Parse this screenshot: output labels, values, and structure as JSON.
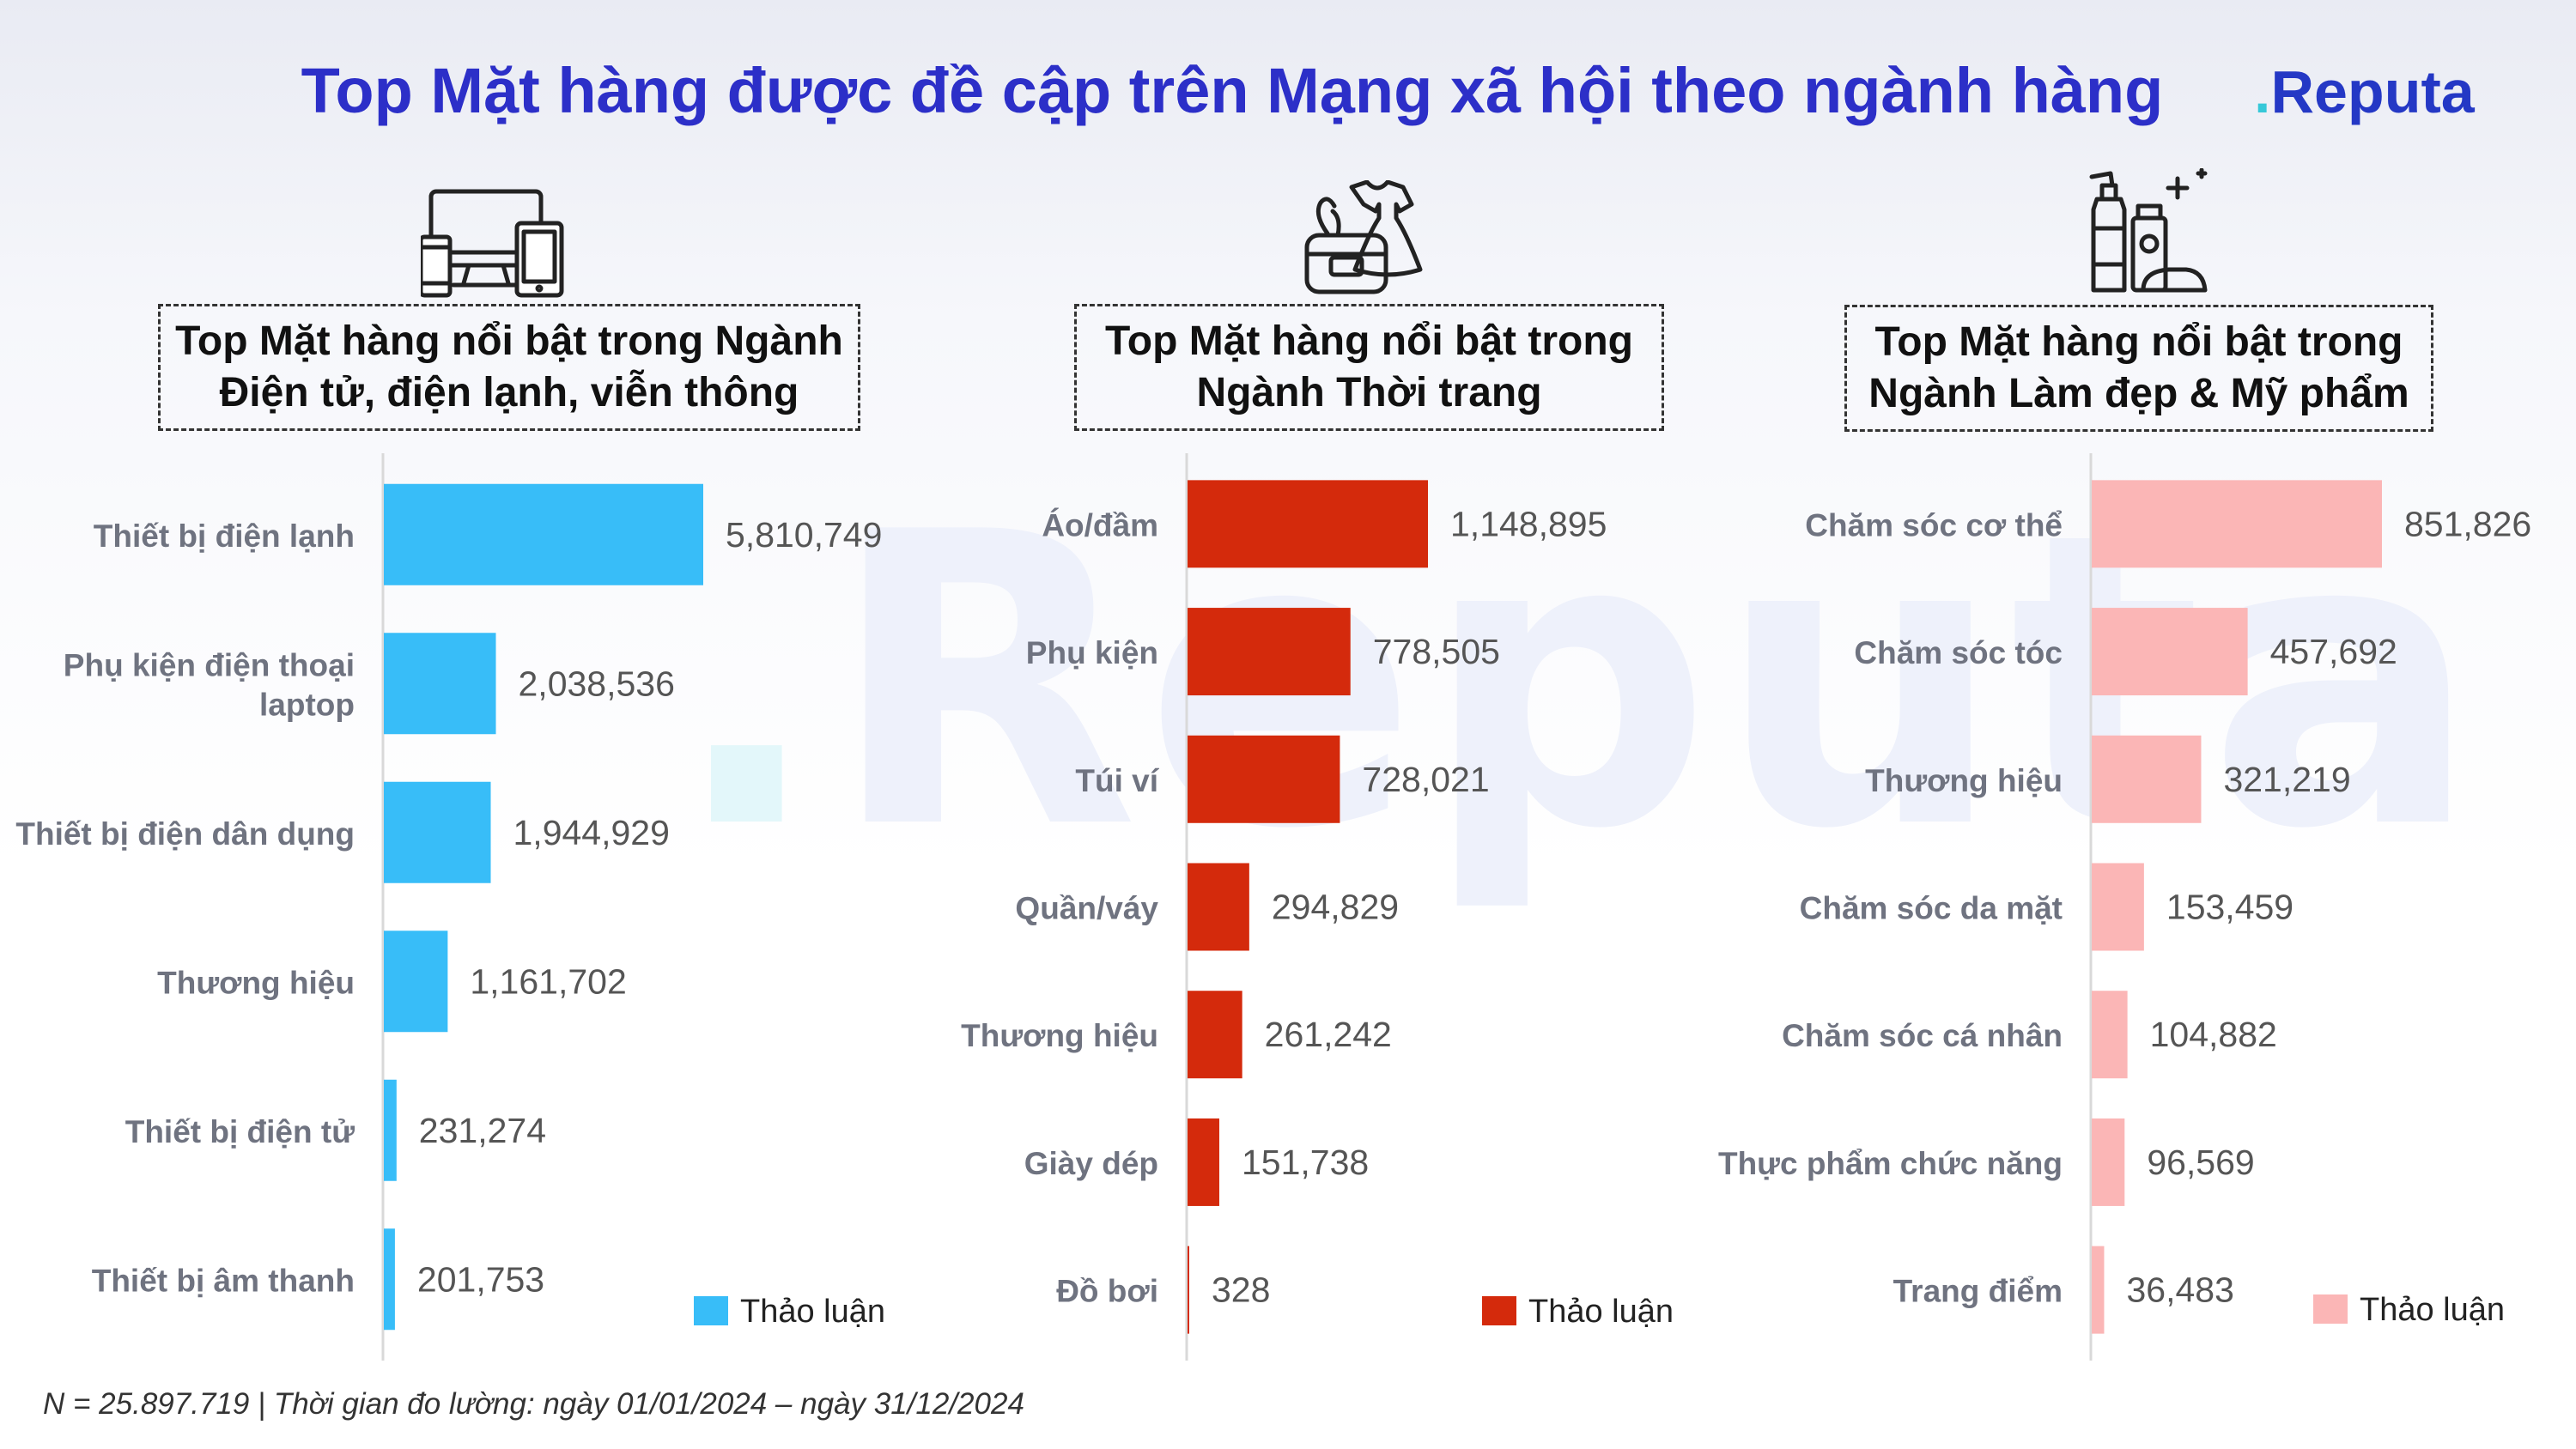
{
  "title": "Top Mặt hàng được đề cập trên Mạng xã hội theo ngành hàng",
  "logo": {
    "dot": ".",
    "text": "Reputa"
  },
  "watermark": {
    "dot": ".",
    "text": "Reputa"
  },
  "footnote": "N = 25.897.719 | Thời gian đo lường: ngày 01/01/2024 – ngày 31/12/2024",
  "icons": [
    "devices-icon",
    "fashion-icon",
    "cosmetics-icon"
  ],
  "colors": {
    "title": "#2c2fc8",
    "electronics": "#38bdf8",
    "fashion": "#d42a0c",
    "beauty": "#fbb6b6",
    "label": "#6f7380",
    "value": "#555555"
  },
  "chart_data": [
    {
      "type": "bar",
      "orientation": "horizontal",
      "panel_title_lines": [
        "Top Mặt hàng nổi bật trong Ngành",
        "Điện tử, điện lạnh, viễn thông"
      ],
      "categories": [
        [
          "Thiết bị điện lạnh"
        ],
        [
          "Phụ kiện điện thoại",
          "laptop"
        ],
        [
          "Thiết bị điện dân dụng"
        ],
        [
          "Thương hiệu"
        ],
        [
          "Thiết bị điện tử"
        ],
        [
          "Thiết bị âm thanh"
        ]
      ],
      "series": [
        {
          "name": "Thảo luận",
          "color": "#38bdf8",
          "values": [
            5810749,
            2038536,
            1944929,
            1161702,
            231274,
            201753
          ]
        }
      ],
      "value_labels": [
        "5,810,749",
        "2,038,536",
        "1,944,929",
        "1,161,702",
        "231,274",
        "201,753"
      ],
      "legend": "bottom-right"
    },
    {
      "type": "bar",
      "orientation": "horizontal",
      "panel_title_lines": [
        "Top Mặt hàng nổi bật trong",
        "Ngành Thời trang"
      ],
      "categories": [
        [
          "Áo/đầm"
        ],
        [
          "Phụ kiện"
        ],
        [
          "Túi ví"
        ],
        [
          "Quần/váy"
        ],
        [
          "Thương hiệu"
        ],
        [
          "Giày dép"
        ],
        [
          "Đồ bơi"
        ]
      ],
      "series": [
        {
          "name": "Thảo luận",
          "color": "#d42a0c",
          "values": [
            1148895,
            778505,
            728021,
            294829,
            261242,
            151738,
            328
          ]
        }
      ],
      "value_labels": [
        "1,148,895",
        "778,505",
        "728,021",
        "294,829",
        "261,242",
        "151,738",
        "328"
      ],
      "legend": "bottom-right"
    },
    {
      "type": "bar",
      "orientation": "horizontal",
      "panel_title_lines": [
        "Top Mặt hàng nổi bật trong",
        "Ngành Làm đẹp & Mỹ phẩm"
      ],
      "categories": [
        [
          "Chăm sóc cơ thể"
        ],
        [
          "Chăm sóc tóc"
        ],
        [
          "Thương hiệu"
        ],
        [
          "Chăm sóc da mặt"
        ],
        [
          "Chăm sóc cá nhân"
        ],
        [
          "Thực phẩm chức năng"
        ],
        [
          "Trang điểm"
        ]
      ],
      "series": [
        {
          "name": "Thảo luận",
          "color": "#fbb6b6",
          "values": [
            851826,
            457692,
            321219,
            153459,
            104882,
            96569,
            36483
          ]
        }
      ],
      "value_labels": [
        "851,826",
        "457,692",
        "321,219",
        "153,459",
        "104,882",
        "96,569",
        "36,483"
      ],
      "legend": "bottom-right"
    }
  ]
}
